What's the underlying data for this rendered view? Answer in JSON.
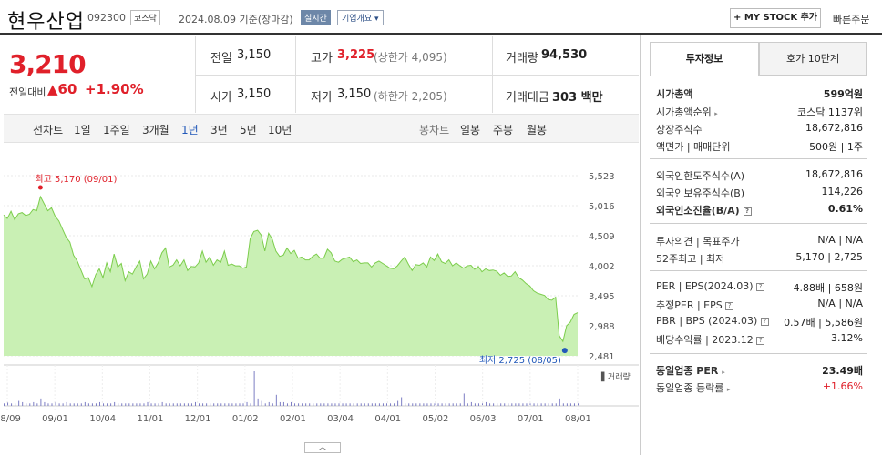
{
  "header": {
    "name": "현우산업",
    "code": "092300",
    "market": "코스닥",
    "date": "2024.08.09 기준(장마감)",
    "live": "실시간",
    "company_info": "기업개요",
    "mystock": "+ MY STOCK 추가",
    "quick_order": "빠른주문"
  },
  "price": {
    "current": "3,210",
    "prev_label": "전일대비",
    "change": "▲60",
    "pct": "+1.90%"
  },
  "quotes": {
    "prev_l": "전일",
    "prev_v": "3,150",
    "high_l": "고가",
    "high_v": "3,225",
    "upper": "(상한가 4,095)",
    "vol_l": "거래량",
    "vol_v": "94,530",
    "open_l": "시가",
    "open_v": "3,150",
    "low_l": "저가",
    "low_v": "3,150",
    "lower": "(하한가 2,205)",
    "amt_l": "거래대금",
    "amt_v": "303 백만"
  },
  "periods": {
    "line_label": "선차트",
    "items": [
      "1일",
      "1주일",
      "3개월",
      "1년",
      "3년",
      "5년",
      "10년"
    ],
    "selected": "1년",
    "candle_label": "봉차트",
    "candle_items": [
      "일봉",
      "주봉",
      "월봉"
    ]
  },
  "chart_data": {
    "type": "area",
    "yticks": [
      "5,523",
      "5,016",
      "4,509",
      "4,002",
      "3,495",
      "2,988",
      "2,481"
    ],
    "ylim": [
      2481,
      5523
    ],
    "xticks": [
      "08/09",
      "09/01",
      "10/04",
      "11/01",
      "12/01",
      "01/02",
      "02/01",
      "03/04",
      "04/01",
      "05/02",
      "06/03",
      "07/01",
      "08/01"
    ],
    "high_label": "최고 5,170 (09/01)",
    "low_label": "최저 2,725 (08/05)",
    "volume_label": "거래량",
    "values": [
      4860,
      4800,
      4920,
      4780,
      4880,
      4900,
      4850,
      4870,
      4950,
      4930,
      5170,
      5050,
      4930,
      4980,
      4840,
      4760,
      4620,
      4480,
      4400,
      4180,
      4080,
      3930,
      3780,
      3800,
      3650,
      3850,
      3950,
      3800,
      4050,
      3900,
      4200,
      3980,
      4040,
      3750,
      3900,
      3860,
      3980,
      4080,
      3780,
      3860,
      4080,
      3950,
      4050,
      4220,
      4300,
      3980,
      4010,
      4100,
      4000,
      4100,
      3920,
      3990,
      3980,
      4050,
      4250,
      4060,
      4150,
      4010,
      4100,
      4060,
      4250,
      4010,
      4030,
      4000,
      4000,
      3960,
      3980,
      4460,
      4580,
      4600,
      4520,
      4250,
      4550,
      4450,
      4250,
      4160,
      4180,
      4300,
      4210,
      4260,
      4130,
      4150,
      4100,
      4100,
      4160,
      4200,
      4130,
      4130,
      4280,
      4220,
      4080,
      4060,
      4110,
      4130,
      4150,
      4070,
      4100,
      4040,
      4050,
      4050,
      3980,
      4050,
      4080,
      4040,
      4000,
      3960,
      3950,
      4000,
      4080,
      4150,
      4030,
      3920,
      4020,
      4010,
      4050,
      3980,
      4150,
      4090,
      4200,
      4070,
      4040,
      4100,
      4000,
      4050,
      4000,
      3960,
      4000,
      4010,
      3940,
      3990,
      3900,
      3950,
      3920,
      3930,
      3910,
      3840,
      3880,
      3820,
      3830,
      3900,
      3800,
      3760,
      3700,
      3660,
      3580,
      3540,
      3520,
      3500,
      3430,
      3420,
      3470,
      2820,
      2725,
      2990,
      3050,
      3180,
      3210
    ],
    "volume": [
      2,
      3,
      2,
      2,
      4,
      3,
      2,
      2,
      3,
      2,
      6,
      3,
      2,
      2,
      3,
      2,
      2,
      3,
      2,
      2,
      2,
      2,
      3,
      2,
      2,
      2,
      3,
      2,
      2,
      2,
      3,
      2,
      2,
      2,
      2,
      2,
      2,
      2,
      2,
      3,
      2,
      2,
      2,
      3,
      2,
      2,
      2,
      2,
      2,
      2,
      2,
      2,
      3,
      2,
      2,
      2,
      2,
      2,
      2,
      2,
      2,
      2,
      2,
      2,
      2,
      2,
      3,
      2,
      28,
      6,
      4,
      2,
      3,
      2,
      9,
      3,
      3,
      2,
      3,
      2,
      2,
      2,
      2,
      2,
      2,
      2,
      2,
      2,
      2,
      2,
      2,
      2,
      2,
      2,
      2,
      2,
      2,
      2,
      2,
      2,
      2,
      2,
      2,
      2,
      2,
      2,
      2,
      4,
      7,
      2,
      2,
      2,
      2,
      2,
      2,
      2,
      2,
      2,
      2,
      2,
      2,
      2,
      2,
      2,
      2,
      10,
      2,
      3,
      2,
      2,
      2,
      3,
      2,
      2,
      2,
      2,
      2,
      2,
      2,
      2,
      2,
      2,
      2,
      2,
      2,
      2,
      2,
      2,
      2,
      2,
      2,
      6,
      2,
      2,
      2,
      2,
      2
    ]
  },
  "right": {
    "tab1": "투자정보",
    "tab2": "호가 10단계",
    "mcap_l": "시가총액",
    "mcap_v": "599억원",
    "rank_l": "시가총액순위",
    "rank_v": "코스닥 1137위",
    "shares_l": "상장주식수",
    "shares_v": "18,672,816",
    "par_l": "액면가 | 매매단위",
    "par_v": "500원 | 1주",
    "f1_l": "외국인한도주식수(A)",
    "f1_v": "18,672,816",
    "f2_l": "외국인보유주식수(B)",
    "f2_v": "114,226",
    "f3_l": "외국인소진율(B/A)",
    "f3_v": "0.61%",
    "op_l": "투자의견 | 목표주가",
    "op_v": "N/A | N/A",
    "w52_l": "52주최고 | 최저",
    "w52_v": "5,170 | 2,725",
    "per_l": "PER | EPS(2024.03)",
    "per_v": "4.88배 | 658원",
    "eper_l": "추정PER | EPS",
    "eper_v": "N/A | N/A",
    "pbr_l": "PBR | BPS (2024.03)",
    "pbr_v": "0.57배 | 5,586원",
    "div_l": "배당수익률 | 2023.12",
    "div_v": "3.12%",
    "ind_l": "동일업종 PER",
    "ind_v": "23.49배",
    "indr_l": "동일업종 등락률",
    "indr_v": "+1.66%"
  },
  "colors": {
    "up": "#e0202a",
    "area_fill": "#c9f0b4",
    "area_line": "#7ccd4c",
    "blue": "#2259b9"
  }
}
